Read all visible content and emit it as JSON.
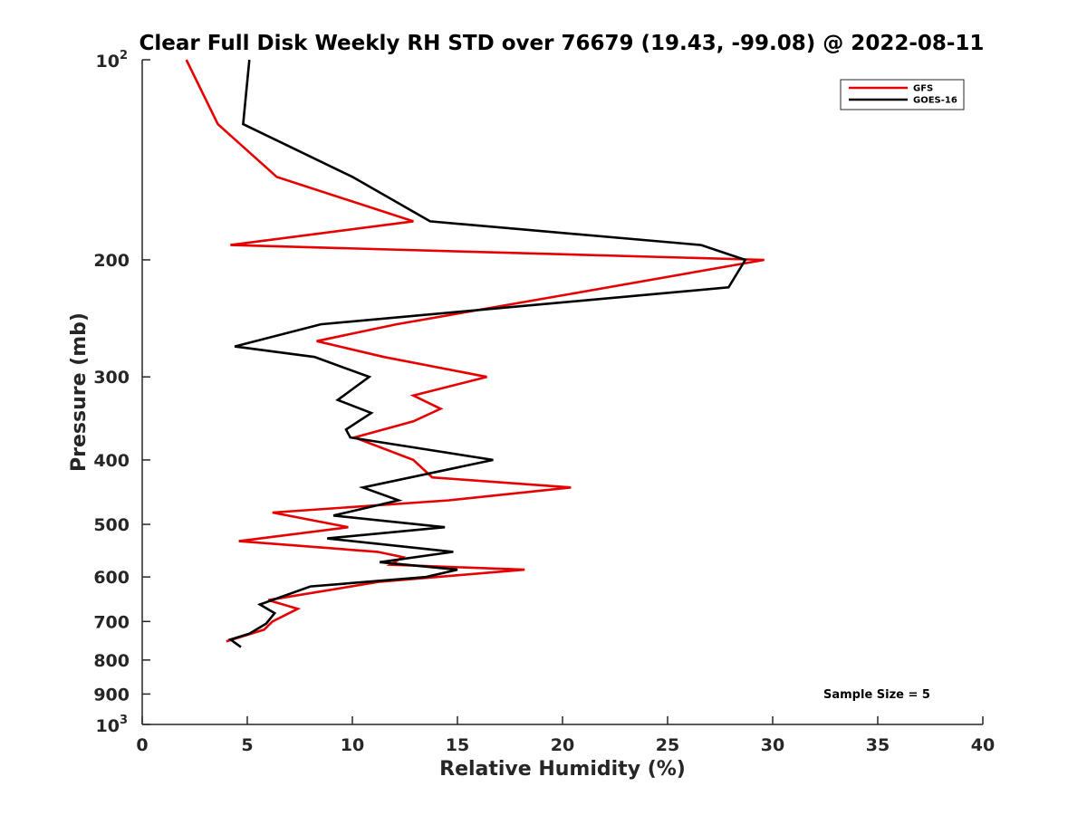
{
  "chart_data": {
    "type": "line",
    "title": "Clear Full Disk Weekly RH STD over 76679 (19.43, -99.08) @ 2022-08-11",
    "xlabel": "Relative Humidity (%)",
    "ylabel": "Pressure (mb)",
    "xlim": [
      0,
      40
    ],
    "ylim": [
      100,
      1000
    ],
    "y_scale": "log",
    "y_reversed": true,
    "x_ticks": [
      "0",
      "5",
      "10",
      "15",
      "20",
      "25",
      "30",
      "35",
      "40"
    ],
    "y_ticks": [
      {
        "value": 100,
        "base": "10",
        "exp": "2"
      },
      {
        "value": 200,
        "label": "200"
      },
      {
        "value": 300,
        "label": "300"
      },
      {
        "value": 400,
        "label": "400"
      },
      {
        "value": 500,
        "label": "500"
      },
      {
        "value": 600,
        "label": "600"
      },
      {
        "value": 700,
        "label": "700"
      },
      {
        "value": 800,
        "label": "800"
      },
      {
        "value": 900,
        "label": "900"
      },
      {
        "value": 1000,
        "base": "10",
        "exp": "3"
      }
    ],
    "legend_position": "top-right",
    "grid": false,
    "annotation": "Sample Size = 5",
    "series": [
      {
        "name": "GFS",
        "color": "#e60000",
        "points": [
          [
            2.1,
            100
          ],
          [
            3.6,
            125
          ],
          [
            6.4,
            150
          ],
          [
            12.9,
            175
          ],
          [
            4.2,
            190
          ],
          [
            29.6,
            200
          ],
          [
            20.4,
            225
          ],
          [
            12.1,
            250
          ],
          [
            8.3,
            265
          ],
          [
            11.5,
            280
          ],
          [
            16.4,
            300
          ],
          [
            12.9,
            320
          ],
          [
            14.2,
            335
          ],
          [
            12.9,
            350
          ],
          [
            10.1,
            370
          ],
          [
            12.9,
            400
          ],
          [
            13.8,
            425
          ],
          [
            20.4,
            440
          ],
          [
            14.6,
            460
          ],
          [
            6.2,
            480
          ],
          [
            9.8,
            505
          ],
          [
            4.6,
            530
          ],
          [
            11.2,
            550
          ],
          [
            12.4,
            560
          ],
          [
            11.8,
            575
          ],
          [
            18.2,
            585
          ],
          [
            11.3,
            610
          ],
          [
            6.0,
            650
          ],
          [
            7.4,
            670
          ],
          [
            6.2,
            700
          ],
          [
            5.8,
            720
          ],
          [
            4.0,
            750
          ]
        ]
      },
      {
        "name": "GOES-16",
        "color": "#000000",
        "points": [
          [
            5.1,
            100
          ],
          [
            4.8,
            125
          ],
          [
            10.0,
            150
          ],
          [
            13.7,
            175
          ],
          [
            26.6,
            190
          ],
          [
            28.7,
            200
          ],
          [
            27.9,
            220
          ],
          [
            8.5,
            250
          ],
          [
            4.4,
            270
          ],
          [
            8.2,
            280
          ],
          [
            10.8,
            300
          ],
          [
            9.3,
            325
          ],
          [
            10.9,
            340
          ],
          [
            9.7,
            360
          ],
          [
            9.9,
            370
          ],
          [
            16.7,
            400
          ],
          [
            10.5,
            440
          ],
          [
            12.2,
            460
          ],
          [
            9.1,
            485
          ],
          [
            14.4,
            505
          ],
          [
            8.8,
            525
          ],
          [
            14.8,
            550
          ],
          [
            11.3,
            570
          ],
          [
            15.0,
            585
          ],
          [
            13.5,
            600
          ],
          [
            8.0,
            620
          ],
          [
            5.6,
            660
          ],
          [
            6.3,
            680
          ],
          [
            5.9,
            705
          ],
          [
            5.1,
            730
          ],
          [
            4.2,
            745
          ],
          [
            4.7,
            765
          ]
        ]
      }
    ]
  }
}
